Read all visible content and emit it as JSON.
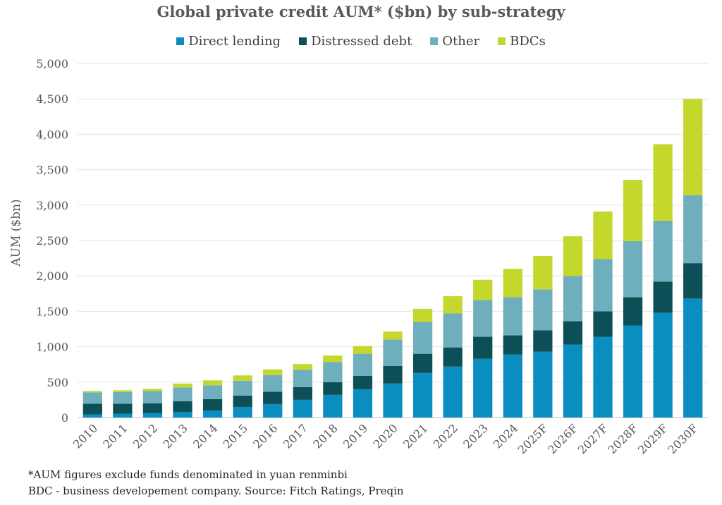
{
  "chart_data": {
    "type": "bar",
    "stacked": true,
    "title": "Global private credit AUM* ($bn) by sub-strategy",
    "ylabel": "AUM ($bn)",
    "xlabel": "",
    "ylim": [
      0,
      5000
    ],
    "yticks": [
      "0",
      "500",
      "1,000",
      "1,500",
      "2,000",
      "2,500",
      "3,000",
      "3,500",
      "4,000",
      "4,500",
      "5,000"
    ],
    "ytick_values": [
      0,
      500,
      1000,
      1500,
      2000,
      2500,
      3000,
      3500,
      4000,
      4500,
      5000
    ],
    "grid": true,
    "legend_position": "top",
    "categories": [
      "2010",
      "2011",
      "2012",
      "2013",
      "2014",
      "2015",
      "2016",
      "2017",
      "2018",
      "2019",
      "2020",
      "2021",
      "2022",
      "2023",
      "2024",
      "2025F",
      "2026F",
      "2027F",
      "2028F",
      "2029F",
      "2030F"
    ],
    "series": [
      {
        "name": "Direct lending",
        "color": "#0a8dbf",
        "values": [
          45,
          55,
          65,
          80,
          100,
          150,
          190,
          250,
          320,
          400,
          480,
          630,
          720,
          830,
          890,
          930,
          1030,
          1140,
          1300,
          1480,
          1680
        ]
      },
      {
        "name": "Distressed debt",
        "color": "#0c4f57",
        "values": [
          150,
          140,
          135,
          150,
          160,
          160,
          175,
          180,
          180,
          190,
          250,
          270,
          270,
          310,
          270,
          300,
          330,
          360,
          400,
          440,
          500
        ]
      },
      {
        "name": "Other",
        "color": "#6fafbd",
        "values": [
          160,
          165,
          175,
          195,
          195,
          210,
          235,
          245,
          285,
          310,
          370,
          450,
          480,
          520,
          540,
          580,
          640,
          740,
          790,
          860,
          960
        ]
      },
      {
        "name": "BDCs",
        "color": "#c3d72c",
        "values": [
          20,
          25,
          30,
          55,
          70,
          75,
          80,
          80,
          90,
          110,
          115,
          185,
          245,
          285,
          400,
          470,
          560,
          670,
          865,
          1080,
          1360
        ]
      }
    ]
  },
  "footnote": {
    "line1": "*AUM figures exclude funds denominated in yuan renminbi",
    "line2": "BDC - business developement company. Source: Fitch Ratings, Preqin"
  }
}
